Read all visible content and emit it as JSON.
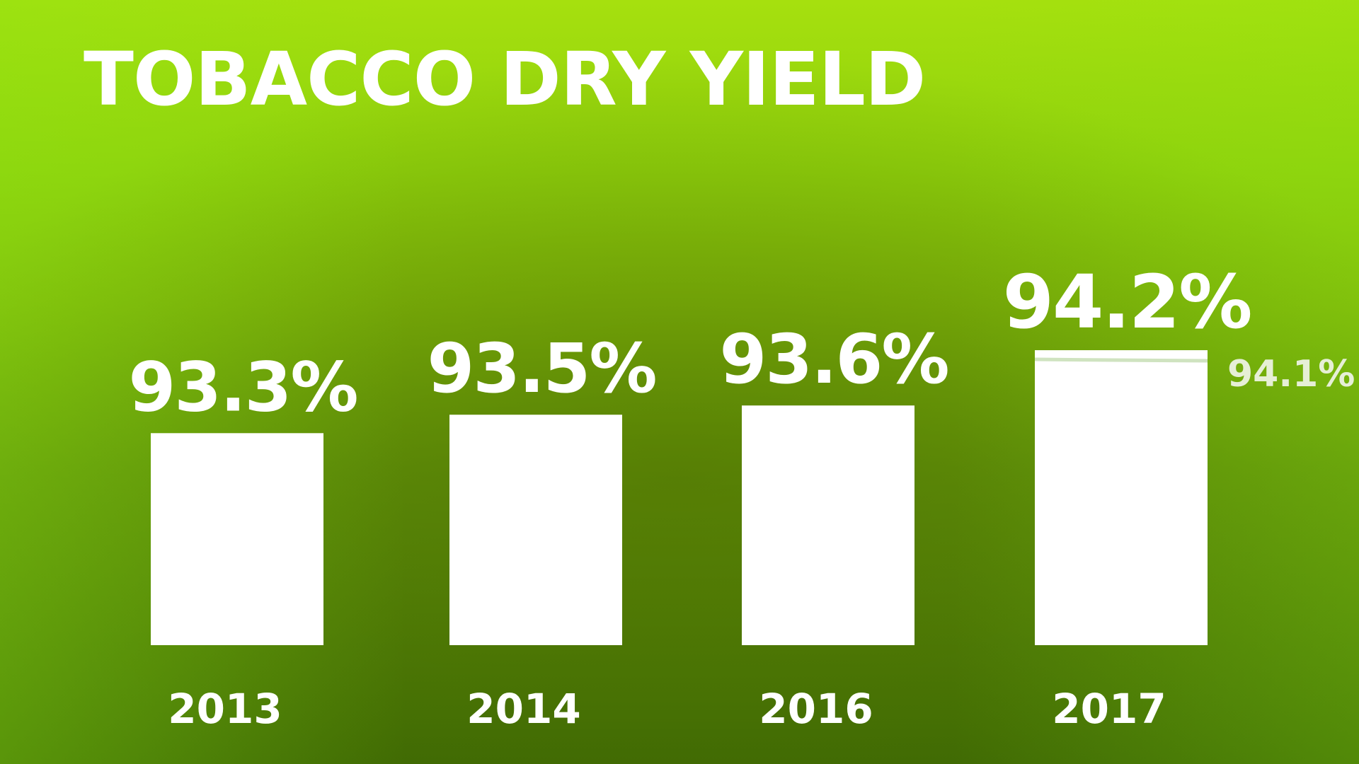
{
  "chart_data": {
    "type": "bar",
    "title": "TOBACCO DRY YIELD",
    "categories": [
      "2013",
      "2014",
      "2016",
      "2017"
    ],
    "values": [
      93.3,
      93.5,
      93.6,
      94.2
    ],
    "value_labels": [
      "93.3%",
      "93.5%",
      "93.6%",
      "94.2%"
    ],
    "target": {
      "category": "2017",
      "value": 94.1,
      "label": "94.1%"
    },
    "xlabel": "",
    "ylabel": "",
    "ylim": [
      91.0,
      94.3
    ],
    "grid": false,
    "legend": "none",
    "colors": {
      "bar": "#ffffff",
      "target_line": "#cfe3c0",
      "text": "#ffffff"
    }
  }
}
